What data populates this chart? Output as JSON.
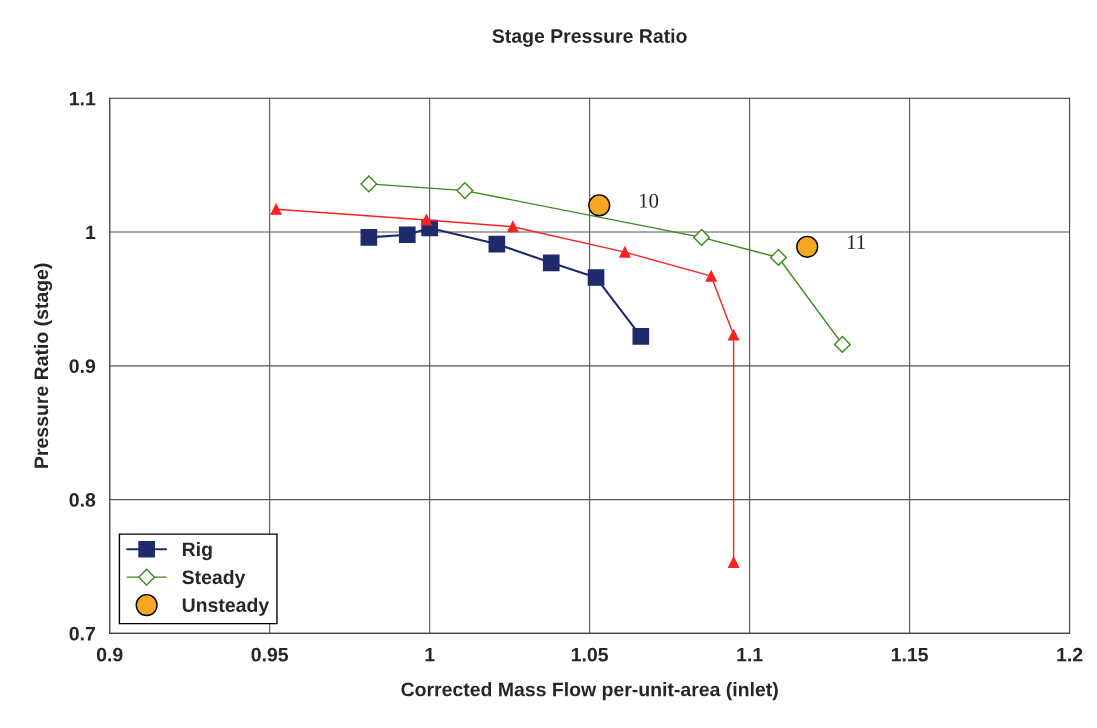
{
  "chart_data": {
    "type": "line",
    "title": "Stage Pressure Ratio",
    "xlabel": "Corrected Mass Flow per-unit-area (inlet)",
    "ylabel": "Pressure Ratio (stage)",
    "xlim": [
      0.9,
      1.2
    ],
    "xticks": [
      0.9,
      0.95,
      1,
      1.05,
      1.1,
      1.15,
      1.2
    ],
    "ylim": [
      0.7,
      1.1
    ],
    "yticks": [
      0.7,
      0.8,
      0.9,
      1,
      1.1
    ],
    "grid": true,
    "legend": "bottom left",
    "series": [
      {
        "name": "Rig",
        "color": "#1f2a6b",
        "marker": "square",
        "x": [
          0.981,
          0.993,
          1.0,
          1.021,
          1.038,
          1.052,
          1.066
        ],
        "values": [
          0.996,
          0.998,
          1.003,
          0.991,
          0.977,
          0.966,
          0.922
        ]
      },
      {
        "color": "#ff2020",
        "marker": "triangle",
        "x": [
          0.952,
          0.999,
          1.026,
          1.061,
          1.088,
          1.095,
          1.095
        ],
        "values": [
          1.017,
          1.009,
          1.004,
          0.985,
          0.967,
          0.923,
          0.753
        ]
      },
      {
        "name": "Steady",
        "color": "#3a8a1a",
        "marker": "diamond",
        "x": [
          0.981,
          1.011,
          1.085,
          1.109,
          1.129
        ],
        "values": [
          1.036,
          1.031,
          0.996,
          0.981,
          0.916
        ]
      },
      {
        "name": "Unsteady",
        "type": "scatter",
        "color": "#f5a623",
        "marker": "circle",
        "x": [
          1.053,
          1.118
        ],
        "values": [
          1.02,
          0.989
        ]
      }
    ],
    "annotations": [
      {
        "text": "10",
        "x": 1.053,
        "y": 1.02
      },
      {
        "text": "11",
        "x": 1.118,
        "y": 0.989
      }
    ]
  }
}
